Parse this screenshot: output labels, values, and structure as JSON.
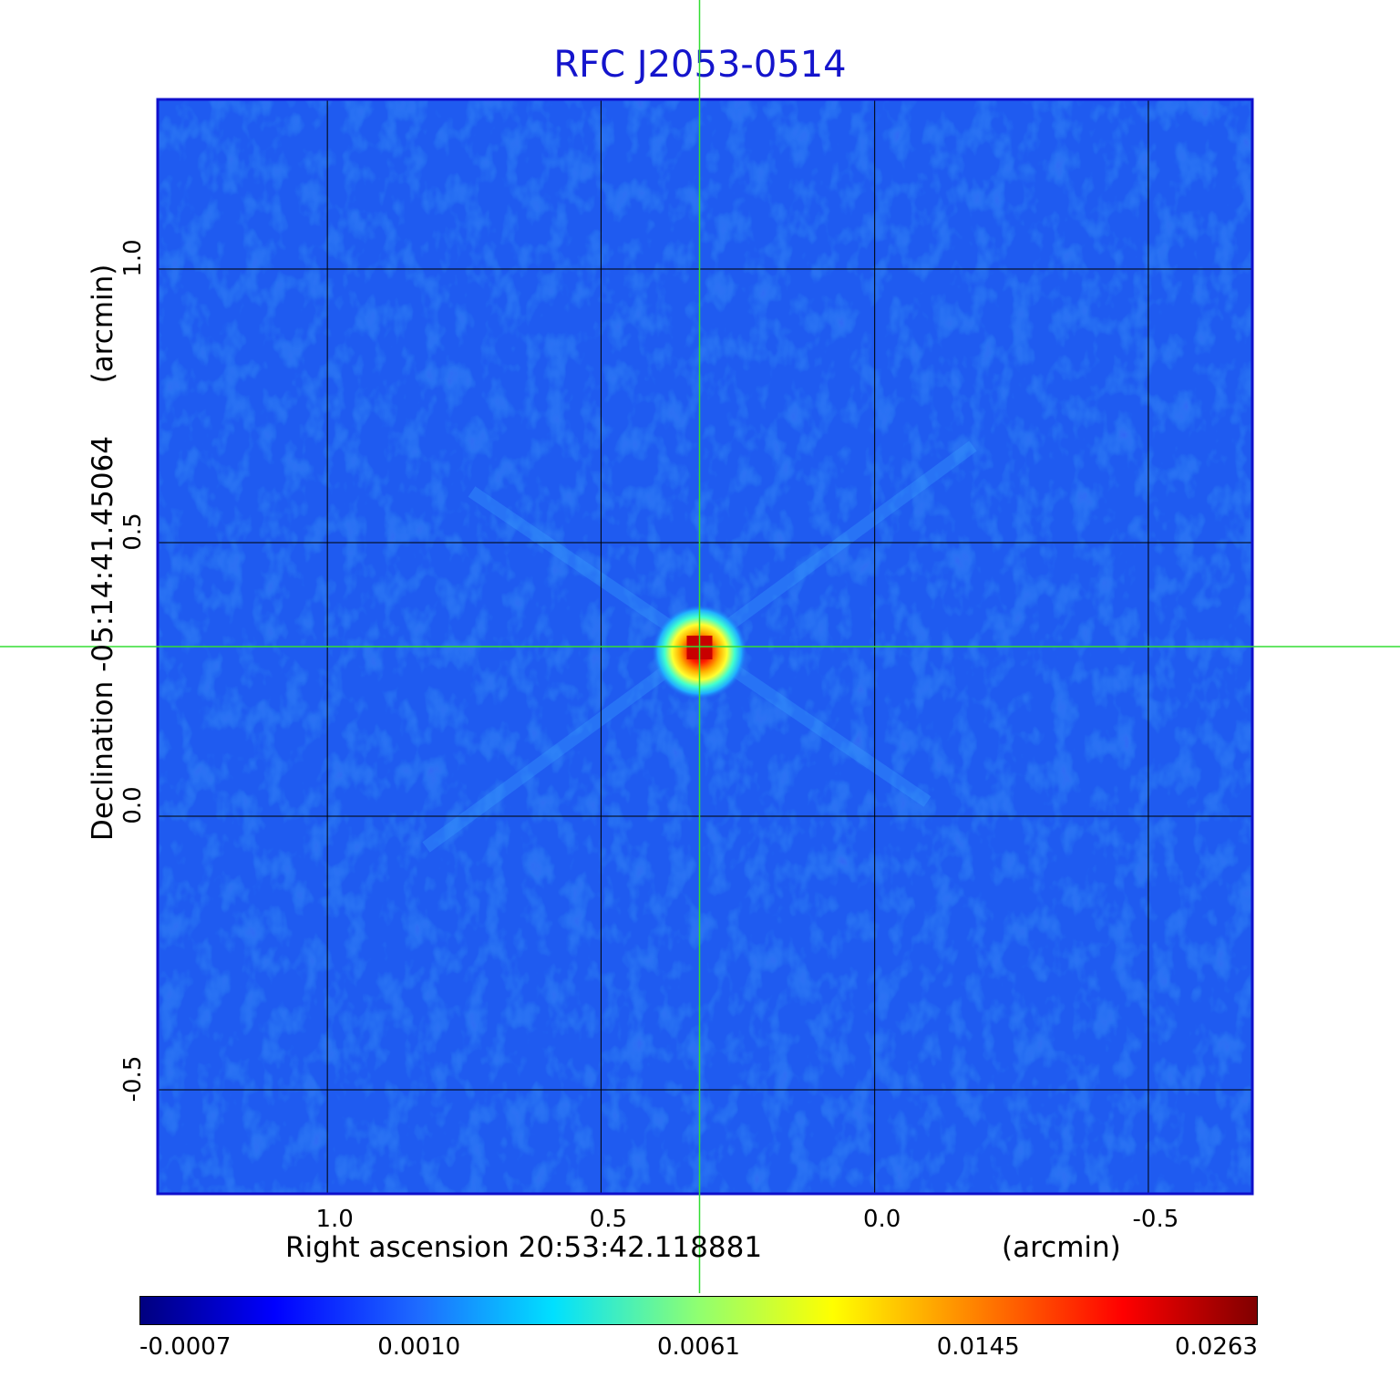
{
  "chart_data": {
    "type": "heatmap",
    "title": "RFC J2053-0514",
    "xlabel": "Right ascension  20:53:42.118881",
    "xunit": "(arcmin)",
    "ylabel": "Declination  -05:14:41.45064",
    "yunit": "(arcmin)",
    "x_ticks": [
      "1.0",
      "0.5",
      "0.0",
      "-0.5"
    ],
    "x_tick_values": [
      1.0,
      0.5,
      0.0,
      -0.5
    ],
    "y_ticks": [
      "1.0",
      "0.5",
      "0.0",
      "-0.5"
    ],
    "y_tick_values": [
      1.0,
      0.5,
      0.0,
      -0.5
    ],
    "xlim": [
      1.31,
      -0.69
    ],
    "ylim": [
      -0.69,
      1.31
    ],
    "grid": true,
    "colormap": "jet",
    "source": {
      "ra_offset": 0.32,
      "dec_offset": 0.31,
      "peak": 0.0263
    },
    "colorbar_ticks": [
      "-0.0007",
      "0.0010",
      "0.0061",
      "0.0145",
      "0.0263"
    ],
    "colorbar_values": [
      -0.0007,
      0.001,
      0.0061,
      0.0145,
      0.0263
    ],
    "colors": {
      "background_map": "#1f5bf0",
      "title": "#1414cc",
      "crosshair": "#33dd33",
      "frame": "#1010cc",
      "grid": "#000000"
    }
  }
}
